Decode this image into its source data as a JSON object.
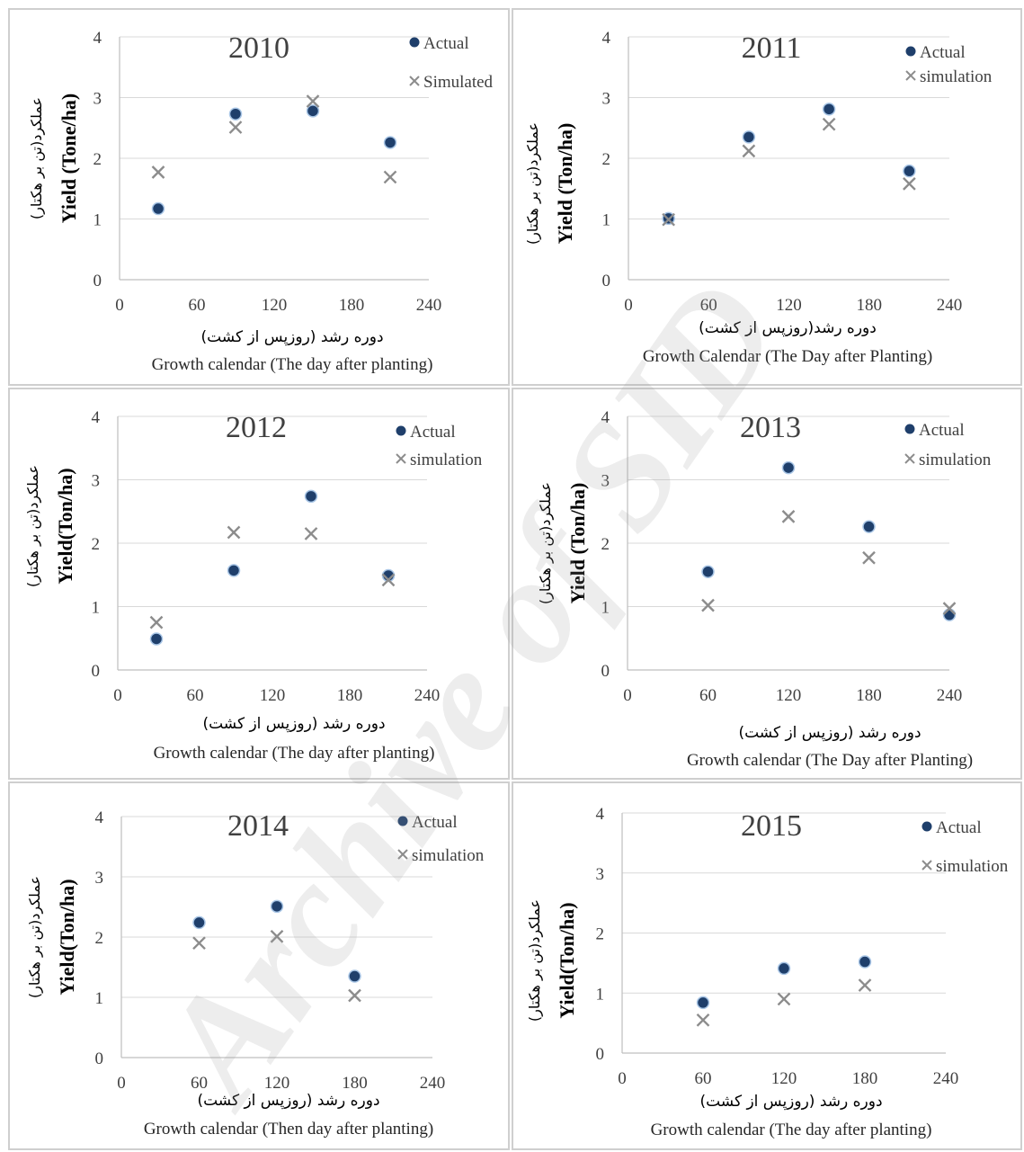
{
  "colors": {
    "actual": "#1f3f6b",
    "simulated": "#8c8c8c",
    "grid": "#d9d9d9"
  },
  "watermark": "Archive of SID",
  "chart_data": [
    {
      "type": "scatter",
      "title": "2010",
      "xlim": [
        0,
        240
      ],
      "ylim": [
        0,
        4
      ],
      "xticks": [
        "0",
        "60",
        "120",
        "180",
        "240"
      ],
      "yticks": [
        "0",
        "1",
        "2",
        "3",
        "4"
      ],
      "ylabel_fa": "عملکرد(تن بر هکتار)",
      "ylabel": "Yield (Tone/ha)",
      "xlabel_fa": "دوره رشد (روزپس از کشت)",
      "xlabel": "Growth calendar (The day after planting)",
      "legend_position": "top-right",
      "series": [
        {
          "name": "Actual",
          "x": [
            30,
            90,
            150,
            210
          ],
          "y": [
            1.17,
            2.73,
            2.78,
            2.26
          ]
        },
        {
          "name": "Simulated",
          "x": [
            30,
            90,
            150,
            210
          ],
          "y": [
            1.77,
            2.51,
            2.94,
            1.69
          ]
        }
      ]
    },
    {
      "type": "scatter",
      "title": "2011",
      "xlim": [
        0,
        240
      ],
      "ylim": [
        0,
        4
      ],
      "xticks": [
        "0",
        "60",
        "120",
        "180",
        "240"
      ],
      "yticks": [
        "0",
        "1",
        "2",
        "3",
        "4"
      ],
      "ylabel_fa": "عملکرد(تن بر هکتار)",
      "ylabel": "Yield (Ton/ha)",
      "xlabel_fa": "دوره رشد(روزپس از کشت)",
      "xlabel": "Growth Calendar (The Day after Planting)",
      "legend_position": "top-right",
      "series": [
        {
          "name": "Actual",
          "x": [
            30,
            90,
            150,
            210
          ],
          "y": [
            1.01,
            2.35,
            2.81,
            1.79
          ]
        },
        {
          "name": "simulation",
          "x": [
            30,
            90,
            150,
            210
          ],
          "y": [
            0.99,
            2.12,
            2.56,
            1.58
          ]
        }
      ]
    },
    {
      "type": "scatter",
      "title": "2012",
      "xlim": [
        0,
        240
      ],
      "ylim": [
        0,
        4
      ],
      "xticks": [
        "0",
        "60",
        "120",
        "180",
        "240"
      ],
      "yticks": [
        "0",
        "1",
        "2",
        "3",
        "4"
      ],
      "ylabel_fa": "عملکرد(تن بر هکتار)",
      "ylabel": "Yield(Ton/ha)",
      "xlabel_fa": "دوره رشد (روزپس از کشت)",
      "xlabel": "Growth calendar (The day after planting)",
      "legend_position": "top-right",
      "series": [
        {
          "name": "Actual",
          "x": [
            30,
            90,
            150,
            210
          ],
          "y": [
            0.49,
            1.57,
            2.74,
            1.49
          ]
        },
        {
          "name": "simulation",
          "x": [
            30,
            90,
            150,
            210
          ],
          "y": [
            0.75,
            2.17,
            2.15,
            1.42
          ]
        }
      ]
    },
    {
      "type": "scatter",
      "title": "2013",
      "xlim": [
        0,
        240
      ],
      "ylim": [
        0,
        4
      ],
      "xticks": [
        "0",
        "60",
        "120",
        "180",
        "240"
      ],
      "yticks": [
        "0",
        "1",
        "2",
        "3",
        "4"
      ],
      "ylabel_fa": "عملکرد(تن بر هکتار)",
      "ylabel": "Yield (Ton/ha)",
      "xlabel_fa": "دوره رشد (روزپس از کشت)",
      "xlabel": "Growth calendar (The Day after Planting)",
      "legend_position": "top-right",
      "series": [
        {
          "name": "Actual",
          "x": [
            60,
            120,
            180,
            240
          ],
          "y": [
            1.55,
            3.19,
            2.26,
            0.87
          ]
        },
        {
          "name": "simulation",
          "x": [
            60,
            120,
            180,
            240
          ],
          "y": [
            1.02,
            2.42,
            1.77,
            0.97
          ]
        }
      ]
    },
    {
      "type": "scatter",
      "title": "2014",
      "xlim": [
        0,
        240
      ],
      "ylim": [
        0,
        4
      ],
      "xticks": [
        "0",
        "60",
        "120",
        "180",
        "240"
      ],
      "yticks": [
        "0",
        "1",
        "2",
        "3",
        "4"
      ],
      "ylabel_fa": "عملکرد(تن بر هکتار)",
      "ylabel": "Yield(Ton/ha)",
      "xlabel_fa": "دوره رشد (روزپس از کشت)",
      "xlabel": "Growth calendar (Then day after planting)",
      "legend_position": "top-right",
      "series": [
        {
          "name": "Actual",
          "x": [
            60,
            120,
            180
          ],
          "y": [
            2.24,
            2.51,
            1.35
          ]
        },
        {
          "name": "simulation",
          "x": [
            60,
            120,
            180
          ],
          "y": [
            1.9,
            2.01,
            1.03
          ]
        }
      ]
    },
    {
      "type": "scatter",
      "title": "2015",
      "xlim": [
        0,
        240
      ],
      "ylim": [
        0,
        4
      ],
      "xticks": [
        "0",
        "60",
        "120",
        "180",
        "240"
      ],
      "yticks": [
        "0",
        "1",
        "2",
        "3",
        "4"
      ],
      "ylabel_fa": "عملکرد(تن بر هکتار)",
      "ylabel": "Yield(Ton/ha)",
      "xlabel_fa": "دوره رشد (روزپس از کشت)",
      "xlabel": "Growth calendar (The day after planting)",
      "legend_position": "top-right",
      "series": [
        {
          "name": "Actual",
          "x": [
            60,
            120,
            180
          ],
          "y": [
            0.84,
            1.41,
            1.52
          ]
        },
        {
          "name": "simulation",
          "x": [
            60,
            120,
            180
          ],
          "y": [
            0.55,
            0.9,
            1.13
          ]
        }
      ]
    }
  ]
}
